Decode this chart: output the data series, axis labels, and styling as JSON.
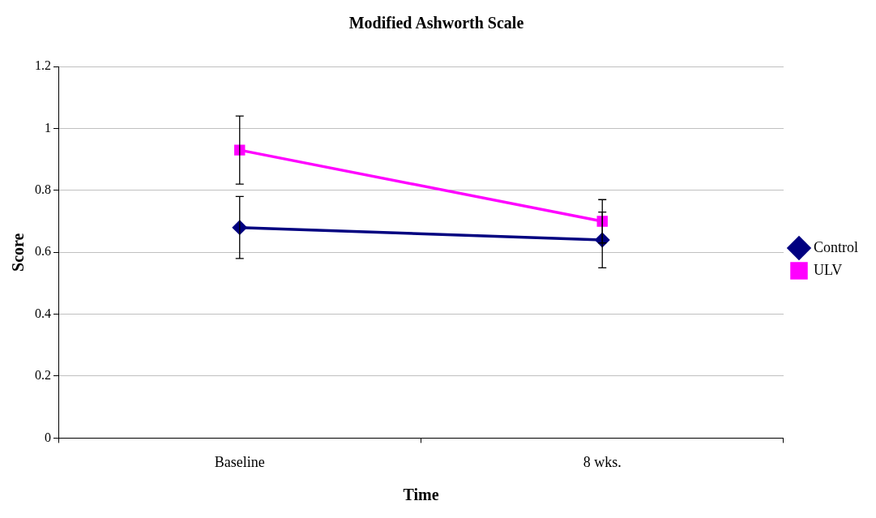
{
  "chart_data": {
    "type": "line",
    "title": "Modified Ashworth Scale",
    "xlabel": "Time",
    "ylabel": "Score",
    "categories": [
      "Baseline",
      "8 wks."
    ],
    "series": [
      {
        "name": "Control",
        "color": "#000080",
        "values": [
          0.68,
          0.64
        ],
        "errors": [
          0.1,
          0.09
        ],
        "marker": "diamond"
      },
      {
        "name": "ULV",
        "color": "#ff00ff",
        "values": [
          0.93,
          0.7
        ],
        "errors": [
          0.11,
          0.07
        ],
        "marker": "square"
      }
    ],
    "ylim": [
      0,
      1.2
    ],
    "yticks": [
      0,
      0.2,
      0.4,
      0.6,
      0.8,
      1,
      1.2
    ],
    "grid": "y",
    "legend": "right",
    "line_style": "solid"
  }
}
